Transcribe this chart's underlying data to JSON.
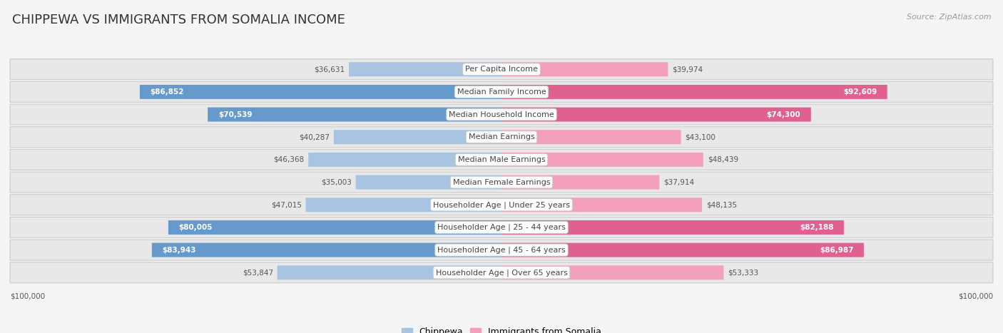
{
  "title": "CHIPPEWA VS IMMIGRANTS FROM SOMALIA INCOME",
  "source": "Source: ZipAtlas.com",
  "categories": [
    "Per Capita Income",
    "Median Family Income",
    "Median Household Income",
    "Median Earnings",
    "Median Male Earnings",
    "Median Female Earnings",
    "Householder Age | Under 25 years",
    "Householder Age | 25 - 44 years",
    "Householder Age | 45 - 64 years",
    "Householder Age | Over 65 years"
  ],
  "chippewa_values": [
    36631,
    86852,
    70539,
    40287,
    46368,
    35003,
    47015,
    80005,
    83943,
    53847
  ],
  "somalia_values": [
    39974,
    92609,
    74300,
    43100,
    48439,
    37914,
    48135,
    82188,
    86987,
    53333
  ],
  "chippewa_labels": [
    "$36,631",
    "$86,852",
    "$70,539",
    "$40,287",
    "$46,368",
    "$35,003",
    "$47,015",
    "$80,005",
    "$83,943",
    "$53,847"
  ],
  "somalia_labels": [
    "$39,974",
    "$92,609",
    "$74,300",
    "$43,100",
    "$48,439",
    "$37,914",
    "$48,135",
    "$82,188",
    "$86,987",
    "$53,333"
  ],
  "chippewa_label_inside": [
    false,
    true,
    true,
    false,
    false,
    false,
    false,
    true,
    true,
    false
  ],
  "somalia_label_inside": [
    false,
    true,
    true,
    false,
    false,
    false,
    false,
    true,
    true,
    false
  ],
  "max_value": 100000,
  "chippewa_color_light": "#a8c4e0",
  "chippewa_color_dark": "#6699cc",
  "somalia_color_light": "#f2a0bc",
  "somalia_color_dark": "#e06090",
  "bg_color": "#ffffff",
  "outer_bg_color": "#f5f5f5",
  "row_bg_color": "#e8e8e8",
  "row_edge_color": "#cccccc",
  "title_fontsize": 13,
  "label_fontsize": 8,
  "value_fontsize": 7.5,
  "legend_fontsize": 9,
  "source_fontsize": 8,
  "xlabel_left": "$100,000",
  "xlabel_right": "$100,000"
}
